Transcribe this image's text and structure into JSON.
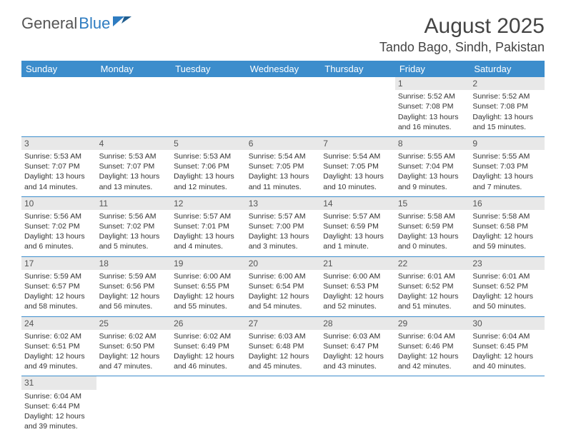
{
  "logo": {
    "word1": "General",
    "word2": "Blue",
    "color1": "#666666",
    "color2": "#2e7cc1"
  },
  "title": "August 2025",
  "location": "Tando Bago, Sindh, Pakistan",
  "header_bg": "#3c8dcc",
  "daynum_bg": "#e8e8e8",
  "border_color": "#3c8dcc",
  "day_headers": [
    "Sunday",
    "Monday",
    "Tuesday",
    "Wednesday",
    "Thursday",
    "Friday",
    "Saturday"
  ],
  "weeks": [
    [
      null,
      null,
      null,
      null,
      null,
      {
        "n": "1",
        "sr": "Sunrise: 5:52 AM",
        "ss": "Sunset: 7:08 PM",
        "dl": "Daylight: 13 hours and 16 minutes."
      },
      {
        "n": "2",
        "sr": "Sunrise: 5:52 AM",
        "ss": "Sunset: 7:08 PM",
        "dl": "Daylight: 13 hours and 15 minutes."
      }
    ],
    [
      {
        "n": "3",
        "sr": "Sunrise: 5:53 AM",
        "ss": "Sunset: 7:07 PM",
        "dl": "Daylight: 13 hours and 14 minutes."
      },
      {
        "n": "4",
        "sr": "Sunrise: 5:53 AM",
        "ss": "Sunset: 7:07 PM",
        "dl": "Daylight: 13 hours and 13 minutes."
      },
      {
        "n": "5",
        "sr": "Sunrise: 5:53 AM",
        "ss": "Sunset: 7:06 PM",
        "dl": "Daylight: 13 hours and 12 minutes."
      },
      {
        "n": "6",
        "sr": "Sunrise: 5:54 AM",
        "ss": "Sunset: 7:05 PM",
        "dl": "Daylight: 13 hours and 11 minutes."
      },
      {
        "n": "7",
        "sr": "Sunrise: 5:54 AM",
        "ss": "Sunset: 7:05 PM",
        "dl": "Daylight: 13 hours and 10 minutes."
      },
      {
        "n": "8",
        "sr": "Sunrise: 5:55 AM",
        "ss": "Sunset: 7:04 PM",
        "dl": "Daylight: 13 hours and 9 minutes."
      },
      {
        "n": "9",
        "sr": "Sunrise: 5:55 AM",
        "ss": "Sunset: 7:03 PM",
        "dl": "Daylight: 13 hours and 7 minutes."
      }
    ],
    [
      {
        "n": "10",
        "sr": "Sunrise: 5:56 AM",
        "ss": "Sunset: 7:02 PM",
        "dl": "Daylight: 13 hours and 6 minutes."
      },
      {
        "n": "11",
        "sr": "Sunrise: 5:56 AM",
        "ss": "Sunset: 7:02 PM",
        "dl": "Daylight: 13 hours and 5 minutes."
      },
      {
        "n": "12",
        "sr": "Sunrise: 5:57 AM",
        "ss": "Sunset: 7:01 PM",
        "dl": "Daylight: 13 hours and 4 minutes."
      },
      {
        "n": "13",
        "sr": "Sunrise: 5:57 AM",
        "ss": "Sunset: 7:00 PM",
        "dl": "Daylight: 13 hours and 3 minutes."
      },
      {
        "n": "14",
        "sr": "Sunrise: 5:57 AM",
        "ss": "Sunset: 6:59 PM",
        "dl": "Daylight: 13 hours and 1 minute."
      },
      {
        "n": "15",
        "sr": "Sunrise: 5:58 AM",
        "ss": "Sunset: 6:59 PM",
        "dl": "Daylight: 13 hours and 0 minutes."
      },
      {
        "n": "16",
        "sr": "Sunrise: 5:58 AM",
        "ss": "Sunset: 6:58 PM",
        "dl": "Daylight: 12 hours and 59 minutes."
      }
    ],
    [
      {
        "n": "17",
        "sr": "Sunrise: 5:59 AM",
        "ss": "Sunset: 6:57 PM",
        "dl": "Daylight: 12 hours and 58 minutes."
      },
      {
        "n": "18",
        "sr": "Sunrise: 5:59 AM",
        "ss": "Sunset: 6:56 PM",
        "dl": "Daylight: 12 hours and 56 minutes."
      },
      {
        "n": "19",
        "sr": "Sunrise: 6:00 AM",
        "ss": "Sunset: 6:55 PM",
        "dl": "Daylight: 12 hours and 55 minutes."
      },
      {
        "n": "20",
        "sr": "Sunrise: 6:00 AM",
        "ss": "Sunset: 6:54 PM",
        "dl": "Daylight: 12 hours and 54 minutes."
      },
      {
        "n": "21",
        "sr": "Sunrise: 6:00 AM",
        "ss": "Sunset: 6:53 PM",
        "dl": "Daylight: 12 hours and 52 minutes."
      },
      {
        "n": "22",
        "sr": "Sunrise: 6:01 AM",
        "ss": "Sunset: 6:52 PM",
        "dl": "Daylight: 12 hours and 51 minutes."
      },
      {
        "n": "23",
        "sr": "Sunrise: 6:01 AM",
        "ss": "Sunset: 6:52 PM",
        "dl": "Daylight: 12 hours and 50 minutes."
      }
    ],
    [
      {
        "n": "24",
        "sr": "Sunrise: 6:02 AM",
        "ss": "Sunset: 6:51 PM",
        "dl": "Daylight: 12 hours and 49 minutes."
      },
      {
        "n": "25",
        "sr": "Sunrise: 6:02 AM",
        "ss": "Sunset: 6:50 PM",
        "dl": "Daylight: 12 hours and 47 minutes."
      },
      {
        "n": "26",
        "sr": "Sunrise: 6:02 AM",
        "ss": "Sunset: 6:49 PM",
        "dl": "Daylight: 12 hours and 46 minutes."
      },
      {
        "n": "27",
        "sr": "Sunrise: 6:03 AM",
        "ss": "Sunset: 6:48 PM",
        "dl": "Daylight: 12 hours and 45 minutes."
      },
      {
        "n": "28",
        "sr": "Sunrise: 6:03 AM",
        "ss": "Sunset: 6:47 PM",
        "dl": "Daylight: 12 hours and 43 minutes."
      },
      {
        "n": "29",
        "sr": "Sunrise: 6:04 AM",
        "ss": "Sunset: 6:46 PM",
        "dl": "Daylight: 12 hours and 42 minutes."
      },
      {
        "n": "30",
        "sr": "Sunrise: 6:04 AM",
        "ss": "Sunset: 6:45 PM",
        "dl": "Daylight: 12 hours and 40 minutes."
      }
    ],
    [
      {
        "n": "31",
        "sr": "Sunrise: 6:04 AM",
        "ss": "Sunset: 6:44 PM",
        "dl": "Daylight: 12 hours and 39 minutes."
      },
      null,
      null,
      null,
      null,
      null,
      null
    ]
  ]
}
